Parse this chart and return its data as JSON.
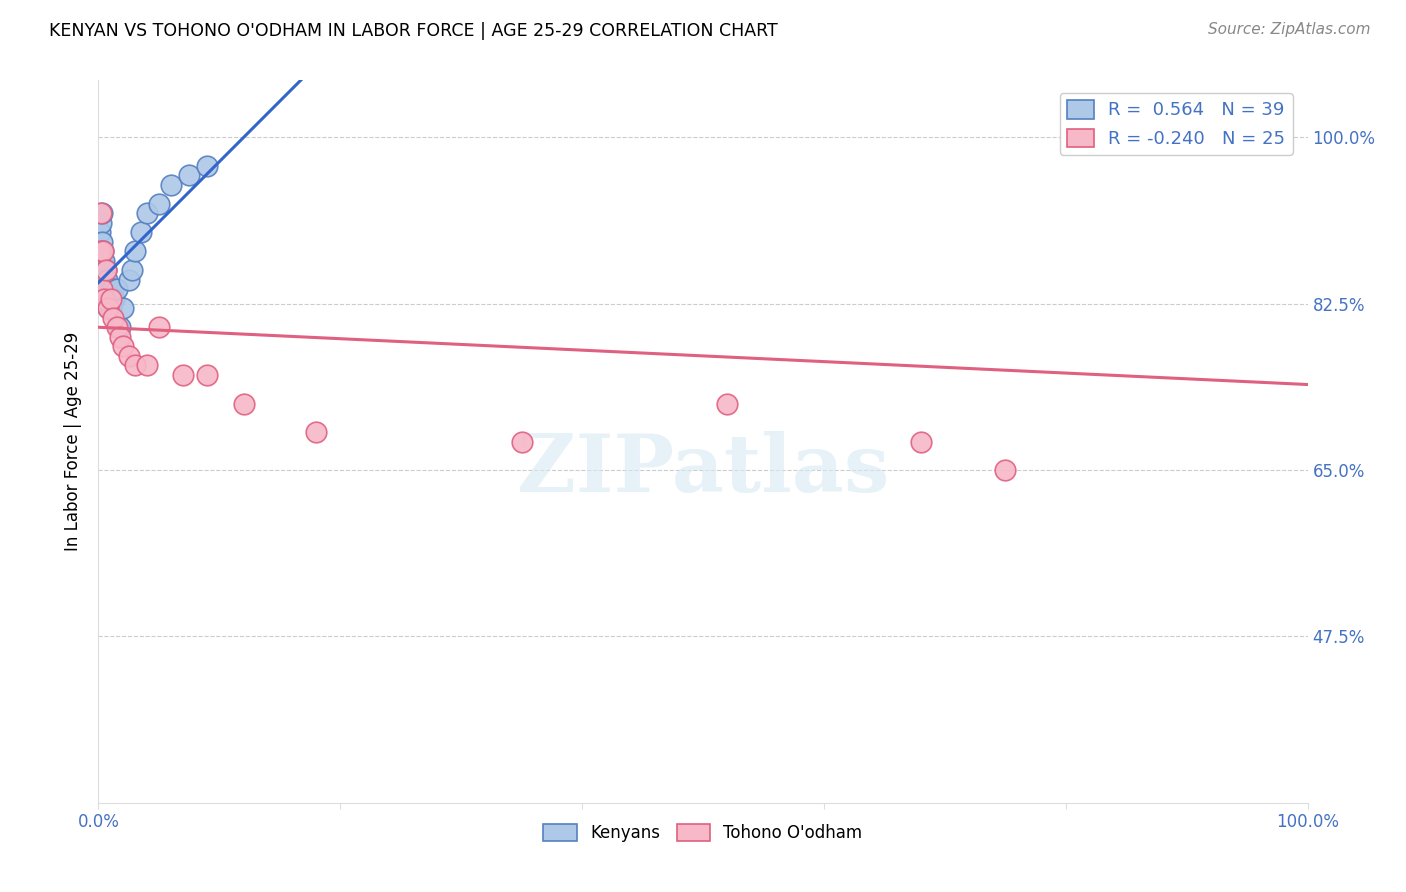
{
  "title": "KENYAN VS TOHONO O'ODHAM IN LABOR FORCE | AGE 25-29 CORRELATION CHART",
  "source": "Source: ZipAtlas.com",
  "ylabel": "In Labor Force | Age 25-29",
  "xlim": [
    0.0,
    1.0
  ],
  "ylim": [
    0.3,
    1.06
  ],
  "ytick_positions": [
    0.475,
    0.65,
    0.825,
    1.0
  ],
  "ytick_labels": [
    "47.5%",
    "65.0%",
    "82.5%",
    "100.0%"
  ],
  "blue_R": 0.564,
  "blue_N": 39,
  "pink_R": -0.24,
  "pink_N": 25,
  "blue_color": "#aec8e8",
  "pink_color": "#f7b8c8",
  "blue_edge_color": "#5580c0",
  "pink_edge_color": "#e06080",
  "blue_line_color": "#3366cc",
  "pink_line_color": "#e06080",
  "legend_blue_label": "Kenyans",
  "legend_pink_label": "Tohono O'odham",
  "blue_x": [
    0.001,
    0.001,
    0.001,
    0.002,
    0.002,
    0.002,
    0.003,
    0.003,
    0.003,
    0.003,
    0.004,
    0.004,
    0.004,
    0.005,
    0.005,
    0.005,
    0.006,
    0.006,
    0.007,
    0.007,
    0.008,
    0.008,
    0.009,
    0.01,
    0.01,
    0.012,
    0.013,
    0.015,
    0.018,
    0.02,
    0.025,
    0.028,
    0.03,
    0.035,
    0.04,
    0.05,
    0.06,
    0.075,
    0.09
  ],
  "blue_y": [
    0.87,
    0.88,
    0.9,
    0.86,
    0.88,
    0.91,
    0.85,
    0.87,
    0.89,
    0.92,
    0.84,
    0.86,
    0.88,
    0.83,
    0.85,
    0.87,
    0.84,
    0.86,
    0.83,
    0.85,
    0.82,
    0.84,
    0.83,
    0.82,
    0.84,
    0.84,
    0.83,
    0.84,
    0.8,
    0.82,
    0.85,
    0.86,
    0.88,
    0.9,
    0.92,
    0.93,
    0.95,
    0.96,
    0.97
  ],
  "pink_x": [
    0.001,
    0.002,
    0.003,
    0.004,
    0.005,
    0.006,
    0.008,
    0.01,
    0.012,
    0.015,
    0.018,
    0.02,
    0.025,
    0.03,
    0.04,
    0.05,
    0.07,
    0.09,
    0.12,
    0.18,
    0.35,
    0.52,
    0.68,
    0.75,
    0.9
  ],
  "pink_y": [
    0.88,
    0.92,
    0.84,
    0.88,
    0.83,
    0.86,
    0.82,
    0.83,
    0.81,
    0.8,
    0.79,
    0.78,
    0.77,
    0.76,
    0.76,
    0.8,
    0.75,
    0.75,
    0.72,
    0.69,
    0.68,
    0.72,
    0.68,
    0.65,
    1.0
  ],
  "watermark_text": "ZIPatlas",
  "background_color": "#ffffff",
  "grid_color": "#cccccc",
  "tick_label_color": "#4472c4",
  "spine_color": "#dddddd"
}
